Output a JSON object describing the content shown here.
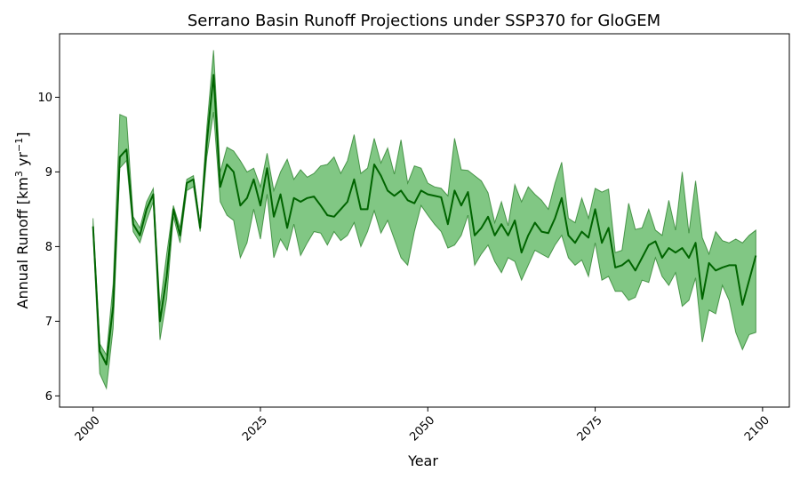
{
  "chart_data": {
    "type": "area",
    "title": "Serrano Basin Runoff Projections under SSP370 for GloGEM",
    "xlabel": "Year",
    "ylabel": {
      "prefix": "Annual Runoff [km",
      "sup1": "3",
      "middle": " yr",
      "sup2": "−1",
      "suffix": "]"
    },
    "xlim": [
      1995,
      2104
    ],
    "ylim": [
      5.85,
      10.85
    ],
    "xticks": [
      2000,
      2025,
      2050,
      2075,
      2100
    ],
    "yticks": [
      6,
      7,
      8,
      9,
      10
    ],
    "grid": false,
    "line_color": "#006400",
    "fill_color": "#4caf50",
    "fill_opacity": 0.7,
    "x": [
      2000,
      2001,
      2002,
      2003,
      2004,
      2005,
      2006,
      2007,
      2008,
      2009,
      2010,
      2011,
      2012,
      2013,
      2014,
      2015,
      2016,
      2017,
      2018,
      2019,
      2020,
      2021,
      2022,
      2023,
      2024,
      2025,
      2026,
      2027,
      2028,
      2029,
      2030,
      2031,
      2032,
      2033,
      2034,
      2035,
      2036,
      2037,
      2038,
      2039,
      2040,
      2041,
      2042,
      2043,
      2044,
      2045,
      2046,
      2047,
      2048,
      2049,
      2050,
      2051,
      2052,
      2053,
      2054,
      2055,
      2056,
      2057,
      2058,
      2059,
      2060,
      2061,
      2062,
      2063,
      2064,
      2065,
      2066,
      2067,
      2068,
      2069,
      2070,
      2071,
      2072,
      2073,
      2074,
      2075,
      2076,
      2077,
      2078,
      2079,
      2080,
      2081,
      2082,
      2083,
      2084,
      2085,
      2086,
      2087,
      2088,
      2089,
      2090,
      2091,
      2092,
      2093,
      2094,
      2095,
      2096,
      2097,
      2098,
      2099
    ],
    "series": [
      {
        "values": [
          8.27,
          6.6,
          6.42,
          7.2,
          9.2,
          9.3,
          8.3,
          8.15,
          8.5,
          8.7,
          7.0,
          7.6,
          8.5,
          8.15,
          8.85,
          8.9,
          8.25,
          9.4,
          10.3,
          8.8,
          9.1,
          9.0,
          8.55,
          8.65,
          8.9,
          8.55,
          9.05,
          8.4,
          8.7,
          8.25,
          8.65,
          8.6,
          8.65,
          8.67,
          8.55,
          8.42,
          8.4,
          8.5,
          8.6,
          8.9,
          8.5,
          8.5,
          9.1,
          8.95,
          8.75,
          8.68,
          8.75,
          8.62,
          8.58,
          8.75,
          8.7,
          8.68,
          8.66,
          8.3,
          8.75,
          8.55,
          8.73,
          8.15,
          8.25,
          8.4,
          8.15,
          8.3,
          8.15,
          8.35,
          7.92,
          8.15,
          8.32,
          8.2,
          8.18,
          8.38,
          8.65,
          8.15,
          8.05,
          8.2,
          8.12,
          8.5,
          8.05,
          8.25,
          7.72,
          7.75,
          7.82,
          7.68,
          7.85,
          8.02,
          8.07,
          7.85,
          7.98,
          7.92,
          7.98,
          7.85,
          8.05,
          7.3,
          7.78,
          7.68,
          7.72,
          7.75,
          7.75,
          7.22,
          7.55,
          7.88
        ]
      }
    ],
    "lower": [
      8.2,
      6.3,
      6.1,
      6.9,
      9.05,
      9.15,
      8.2,
      8.05,
      8.35,
      8.6,
      6.75,
      7.3,
      8.4,
      8.05,
      8.75,
      8.8,
      8.2,
      9.2,
      9.8,
      8.6,
      8.42,
      8.35,
      7.85,
      8.05,
      8.5,
      8.1,
      8.7,
      7.85,
      8.1,
      7.95,
      8.3,
      7.88,
      8.05,
      8.2,
      8.18,
      8.02,
      8.2,
      8.08,
      8.15,
      8.32,
      8.0,
      8.2,
      8.48,
      8.18,
      8.35,
      8.1,
      7.85,
      7.75,
      8.2,
      8.55,
      8.42,
      8.3,
      8.2,
      7.98,
      8.02,
      8.15,
      8.42,
      7.75,
      7.9,
      8.02,
      7.8,
      7.65,
      7.85,
      7.8,
      7.55,
      7.75,
      7.95,
      7.9,
      7.85,
      8.02,
      8.15,
      7.85,
      7.75,
      7.82,
      7.6,
      8.05,
      7.55,
      7.6,
      7.4,
      7.4,
      7.28,
      7.32,
      7.55,
      7.52,
      7.85,
      7.6,
      7.48,
      7.65,
      7.2,
      7.28,
      7.58,
      6.72,
      7.15,
      7.1,
      7.48,
      7.28,
      6.85,
      6.62,
      6.82,
      6.85
    ],
    "upper": [
      8.38,
      6.7,
      6.55,
      7.5,
      9.77,
      9.73,
      8.4,
      8.25,
      8.6,
      8.78,
      7.2,
      7.9,
      8.55,
      8.25,
      8.9,
      8.95,
      8.3,
      9.6,
      10.63,
      9.0,
      9.33,
      9.28,
      9.15,
      9.0,
      9.05,
      8.8,
      9.25,
      8.75,
      9.0,
      9.17,
      8.9,
      9.03,
      8.93,
      8.98,
      9.08,
      9.1,
      9.2,
      8.98,
      9.15,
      9.5,
      8.98,
      9.05,
      9.45,
      9.12,
      9.32,
      8.97,
      9.43,
      8.85,
      9.08,
      9.05,
      8.85,
      8.8,
      8.78,
      8.68,
      9.45,
      9.03,
      9.02,
      8.95,
      8.88,
      8.72,
      8.32,
      8.6,
      8.28,
      8.83,
      8.6,
      8.8,
      8.7,
      8.62,
      8.5,
      8.85,
      9.13,
      8.38,
      8.32,
      8.65,
      8.38,
      8.78,
      8.73,
      8.77,
      7.92,
      7.95,
      8.58,
      8.23,
      8.25,
      8.5,
      8.22,
      8.15,
      8.62,
      8.22,
      9.0,
      8.18,
      8.88,
      8.12,
      7.9,
      8.2,
      8.08,
      8.05,
      8.1,
      8.05,
      8.15,
      8.22
    ]
  }
}
